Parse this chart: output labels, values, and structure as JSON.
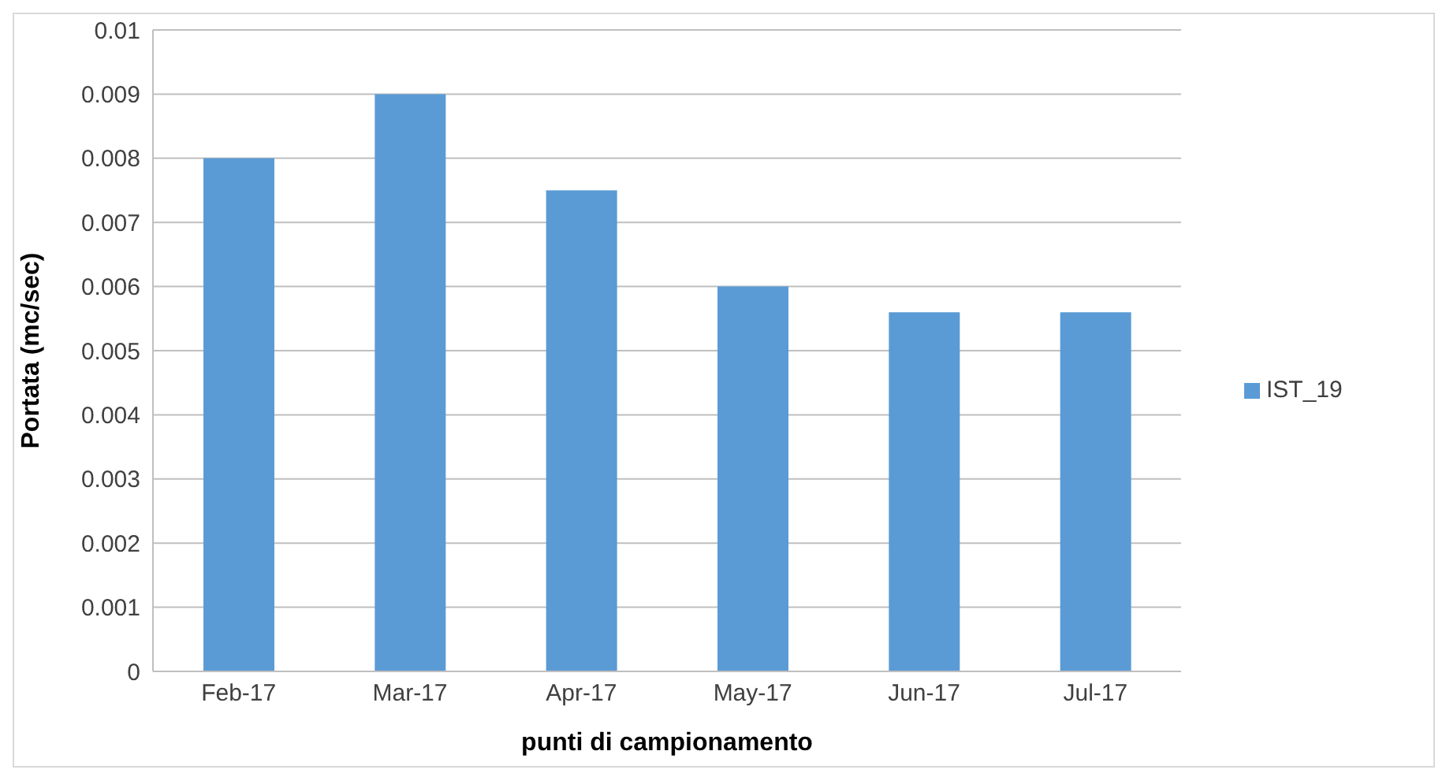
{
  "chart_data": {
    "type": "bar",
    "xlabel": "punti di campionamento",
    "ylabel": "Portata (mc/sec)",
    "categories": [
      "Feb-17",
      "Mar-17",
      "Apr-17",
      "May-17",
      "Jun-17",
      "Jul-17"
    ],
    "series": [
      {
        "name": "IST_19",
        "color": "#5b9bd5",
        "values": [
          0.008,
          0.009,
          0.0075,
          0.006,
          0.0056,
          0.0056
        ]
      }
    ],
    "ylim": [
      0,
      0.01
    ],
    "yticks": [
      0,
      0.001,
      0.002,
      0.003,
      0.004,
      0.005,
      0.006,
      0.007,
      0.008,
      0.009,
      0.01
    ],
    "grid": "y",
    "legend": "right"
  }
}
